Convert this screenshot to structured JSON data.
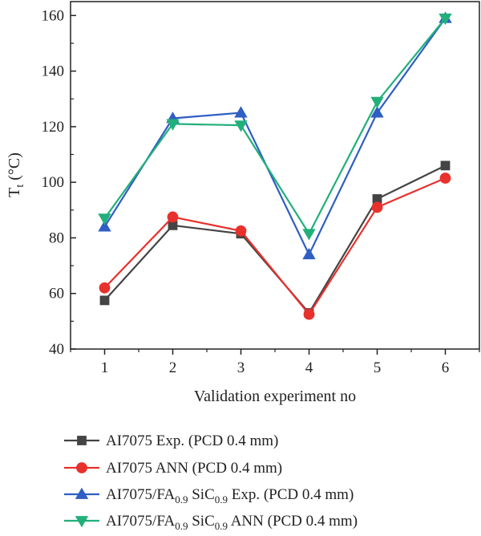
{
  "chart_data": {
    "type": "line",
    "title": "",
    "xlabel": "Validation experiment no",
    "ylabel_main": "T",
    "ylabel_sub": "t",
    "ylabel_unit": " (°C)",
    "x": [
      1,
      2,
      3,
      4,
      5,
      6
    ],
    "x_ticks": [
      "1",
      "2",
      "3",
      "4",
      "5",
      "6"
    ],
    "xlim": [
      0.5,
      6.5
    ],
    "ylim": [
      40,
      165
    ],
    "y_ticks": [
      "40",
      "60",
      "80",
      "100",
      "120",
      "140",
      "160"
    ],
    "grid": false,
    "legend_position": "below",
    "series": [
      {
        "label_parts": [
          {
            "t": "AI7075 Exp. (PCD 0.4 mm)"
          }
        ],
        "color": "#444444",
        "marker": "square",
        "values": [
          57.5,
          84.5,
          81.5,
          53,
          94,
          106
        ]
      },
      {
        "label_parts": [
          {
            "t": "AI7075 ANN (PCD 0.4 mm)"
          }
        ],
        "color": "#e8302c",
        "marker": "circle",
        "values": [
          62,
          87.5,
          82.5,
          52.5,
          91,
          101.5
        ]
      },
      {
        "label_parts": [
          {
            "t": "AI7075/FA"
          },
          {
            "t": "0.9",
            "sub": true
          },
          {
            "t": " SiC"
          },
          {
            "t": "0.9",
            "sub": true
          },
          {
            "t": " Exp. (PCD 0.4 mm)"
          }
        ],
        "color": "#2f5ec4",
        "marker": "triangle-up",
        "values": [
          84,
          123,
          125,
          74,
          125,
          159
        ]
      },
      {
        "label_parts": [
          {
            "t": "AI7075/FA"
          },
          {
            "t": "0.9",
            "sub": true
          },
          {
            "t": " SiC"
          },
          {
            "t": "0.9",
            "sub": true
          },
          {
            "t": " ANN (PCD 0.4 mm)"
          }
        ],
        "color": "#22b07a",
        "marker": "triangle-down",
        "values": [
          87,
          121,
          120.5,
          81.5,
          129,
          159
        ]
      }
    ]
  }
}
